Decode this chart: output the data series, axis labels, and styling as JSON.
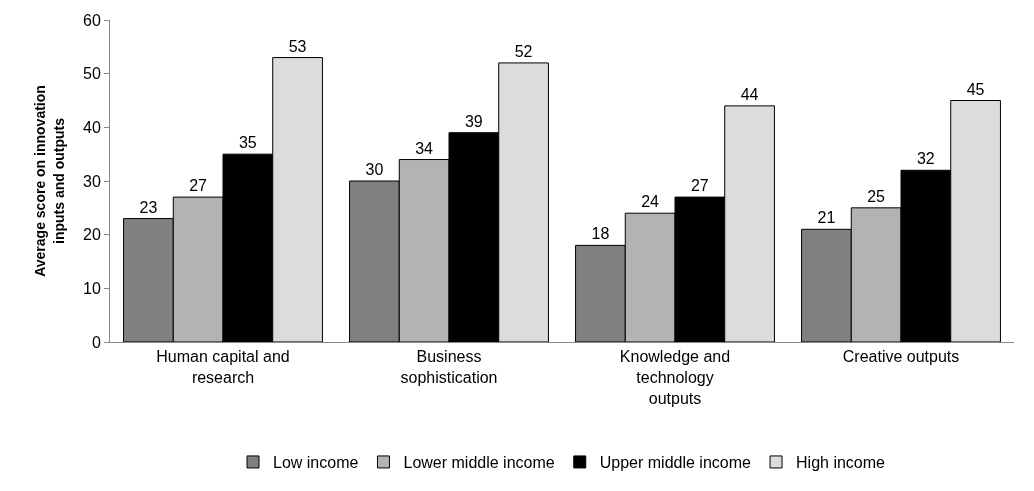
{
  "chart_data": {
    "type": "bar",
    "ylabel": "Average score on innovation\ninputs and outputs",
    "categories": [
      "Human capital and\nresearch",
      "Business\nsophistication",
      "Knowledge and\ntechnology\noutputs",
      "Creative outputs"
    ],
    "series": [
      {
        "name": "Low income",
        "color": "#808080",
        "values": [
          23,
          30,
          18,
          21
        ]
      },
      {
        "name": "Lower middle income",
        "color": "#b3b3b3",
        "values": [
          27,
          34,
          24,
          25
        ]
      },
      {
        "name": "Upper middle income",
        "color": "#000000",
        "values": [
          35,
          39,
          27,
          32
        ]
      },
      {
        "name": "High income",
        "color": "#dcdcdc",
        "values": [
          53,
          52,
          44,
          45
        ]
      }
    ],
    "ylim": [
      0,
      60
    ],
    "yticks": [
      0,
      10,
      20,
      30,
      40,
      50,
      60
    ],
    "legend": "bottom",
    "data_labels": true
  }
}
